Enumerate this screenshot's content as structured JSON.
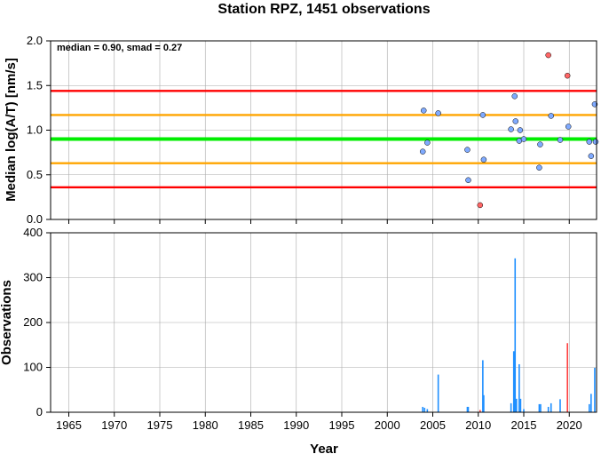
{
  "chart_data": [
    {
      "type": "scatter",
      "title": "Station RPZ, 1451 observations",
      "ylabel": "Median log(A/T) [nm/s]",
      "annotation": "median = 0.90, smad = 0.27",
      "xlim": [
        1963,
        2023
      ],
      "ylim": [
        0,
        2
      ],
      "yticks": [
        0,
        0.5,
        1.0,
        1.5,
        2.0
      ],
      "ytick_labels": [
        "0.0",
        "0.5",
        "1.0",
        "1.5",
        "2.0"
      ],
      "grid": true,
      "reference_lines": [
        {
          "y": 1.44,
          "color": "#ff0000"
        },
        {
          "y": 1.17,
          "color": "#ffa500"
        },
        {
          "y": 0.9,
          "color": "#00ee00"
        },
        {
          "y": 0.63,
          "color": "#ffa500"
        },
        {
          "y": 0.36,
          "color": "#ff0000"
        }
      ],
      "series": [
        {
          "color": "#7faaff",
          "points": [
            [
              2003.9,
              0.76
            ],
            [
              2004.0,
              1.22
            ],
            [
              2004.4,
              0.86
            ],
            [
              2005.6,
              1.19
            ],
            [
              2008.8,
              0.78
            ],
            [
              2008.9,
              0.44
            ],
            [
              2010.5,
              1.17
            ],
            [
              2010.6,
              0.67
            ],
            [
              2013.6,
              1.01
            ],
            [
              2014.0,
              1.38
            ],
            [
              2014.1,
              1.1
            ],
            [
              2014.5,
              0.88
            ],
            [
              2014.6,
              1.0
            ],
            [
              2015.0,
              0.9
            ],
            [
              2016.7,
              0.58
            ],
            [
              2016.8,
              0.84
            ],
            [
              2018.0,
              1.16
            ],
            [
              2019.0,
              0.89
            ],
            [
              2019.9,
              1.04
            ],
            [
              2022.2,
              0.87
            ],
            [
              2022.4,
              0.71
            ],
            [
              2022.8,
              1.29
            ],
            [
              2022.9,
              0.87
            ]
          ]
        },
        {
          "color": "#ff6666",
          "points": [
            [
              2010.2,
              0.16
            ],
            [
              2017.7,
              1.84
            ],
            [
              2019.8,
              1.61
            ]
          ]
        }
      ]
    },
    {
      "type": "bar",
      "xlabel": "Year",
      "ylabel": "Observations",
      "xlim": [
        1963,
        2023
      ],
      "ylim": [
        0,
        400
      ],
      "xticks": [
        1965,
        1970,
        1975,
        1980,
        1985,
        1990,
        1995,
        2000,
        2005,
        2010,
        2015,
        2020
      ],
      "xtick_labels": [
        "1965",
        "1970",
        "1975",
        "1980",
        "1985",
        "1990",
        "1995",
        "2000",
        "2005",
        "2010",
        "2015",
        "2020"
      ],
      "yticks": [
        0,
        100,
        200,
        300,
        400
      ],
      "ytick_labels": [
        "0",
        "100",
        "200",
        "300",
        "400"
      ],
      "grid": true,
      "bars": [
        {
          "x": 2003.9,
          "value": 12,
          "color": "#1f8fff"
        },
        {
          "x": 2004.1,
          "value": 10,
          "color": "#1f8fff"
        },
        {
          "x": 2004.4,
          "value": 7,
          "color": "#1f8fff"
        },
        {
          "x": 2005.6,
          "value": 84,
          "color": "#1f8fff"
        },
        {
          "x": 2008.8,
          "value": 12,
          "color": "#1f8fff"
        },
        {
          "x": 2008.9,
          "value": 12,
          "color": "#1f8fff"
        },
        {
          "x": 2010.2,
          "value": 5,
          "color": "#ff4040"
        },
        {
          "x": 2010.5,
          "value": 116,
          "color": "#1f8fff"
        },
        {
          "x": 2010.6,
          "value": 38,
          "color": "#1f8fff"
        },
        {
          "x": 2013.6,
          "value": 20,
          "color": "#1f8fff"
        },
        {
          "x": 2013.9,
          "value": 136,
          "color": "#1f8fff"
        },
        {
          "x": 2014.05,
          "value": 343,
          "color": "#1f8fff"
        },
        {
          "x": 2014.2,
          "value": 30,
          "color": "#1f8fff"
        },
        {
          "x": 2014.5,
          "value": 107,
          "color": "#1f8fff"
        },
        {
          "x": 2014.65,
          "value": 30,
          "color": "#1f8fff"
        },
        {
          "x": 2015.0,
          "value": 7,
          "color": "#1f8fff"
        },
        {
          "x": 2016.7,
          "value": 18,
          "color": "#1f8fff"
        },
        {
          "x": 2016.85,
          "value": 18,
          "color": "#1f8fff"
        },
        {
          "x": 2017.7,
          "value": 12,
          "color": "#1f8fff"
        },
        {
          "x": 2018.0,
          "value": 20,
          "color": "#1f8fff"
        },
        {
          "x": 2019.0,
          "value": 29,
          "color": "#1f8fff"
        },
        {
          "x": 2019.8,
          "value": 154,
          "color": "#ff4040"
        },
        {
          "x": 2022.2,
          "value": 18,
          "color": "#1f8fff"
        },
        {
          "x": 2022.4,
          "value": 41,
          "color": "#1f8fff"
        },
        {
          "x": 2022.8,
          "value": 99,
          "color": "#1f8fff"
        }
      ]
    }
  ]
}
